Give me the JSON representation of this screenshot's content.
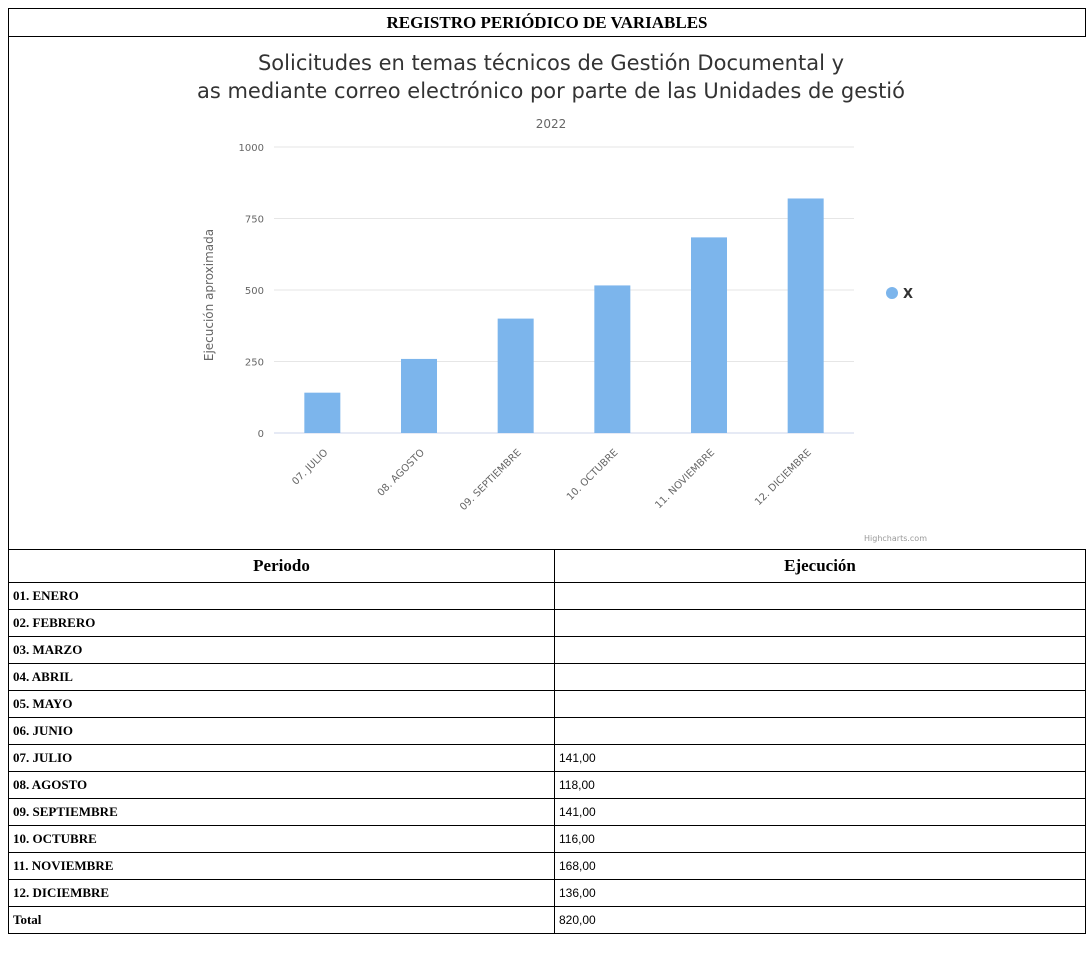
{
  "header": {
    "title": "REGISTRO PERIÓDICO DE VARIABLES"
  },
  "chart_data": {
    "type": "bar",
    "title_line1": "Solicitudes en temas técnicos de Gestión Documental y",
    "title_line2": "as mediante correo electrónico por parte de las Unidades de gestió",
    "subtitle": "2022",
    "ylabel": "Ejecución aproximada",
    "ylim": [
      0,
      1000
    ],
    "yticks": [
      "0",
      "250",
      "500",
      "750",
      "1000"
    ],
    "yticks_values": [
      0,
      250,
      500,
      750,
      1000
    ],
    "categories": [
      "07. JULIO",
      "08. AGOSTO",
      "09. SEPTIEMBRE",
      "10. OCTUBRE",
      "11. NOVIEMBRE",
      "12. DICIEMBRE"
    ],
    "series": [
      {
        "name": "X",
        "values": [
          141,
          259,
          400,
          516,
          684,
          820
        ],
        "color": "#7cb5ec"
      }
    ],
    "legend_position": "right",
    "grid": true,
    "credit": "Highcharts.com"
  },
  "table": {
    "headers": [
      "Periodo",
      "Ejecución"
    ],
    "rows": [
      {
        "periodo": "01. ENERO",
        "ejecucion": ""
      },
      {
        "periodo": "02. FEBRERO",
        "ejecucion": ""
      },
      {
        "periodo": "03. MARZO",
        "ejecucion": ""
      },
      {
        "periodo": "04. ABRIL",
        "ejecucion": ""
      },
      {
        "periodo": "05. MAYO",
        "ejecucion": ""
      },
      {
        "periodo": "06. JUNIO",
        "ejecucion": ""
      },
      {
        "periodo": "07. JULIO",
        "ejecucion": "141,00"
      },
      {
        "periodo": "08. AGOSTO",
        "ejecucion": "118,00"
      },
      {
        "periodo": "09. SEPTIEMBRE",
        "ejecucion": "141,00"
      },
      {
        "periodo": "10. OCTUBRE",
        "ejecucion": "116,00"
      },
      {
        "periodo": "11. NOVIEMBRE",
        "ejecucion": "168,00"
      },
      {
        "periodo": "12. DICIEMBRE",
        "ejecucion": "136,00"
      }
    ],
    "total": {
      "periodo": "Total",
      "ejecucion": "820,00"
    }
  }
}
